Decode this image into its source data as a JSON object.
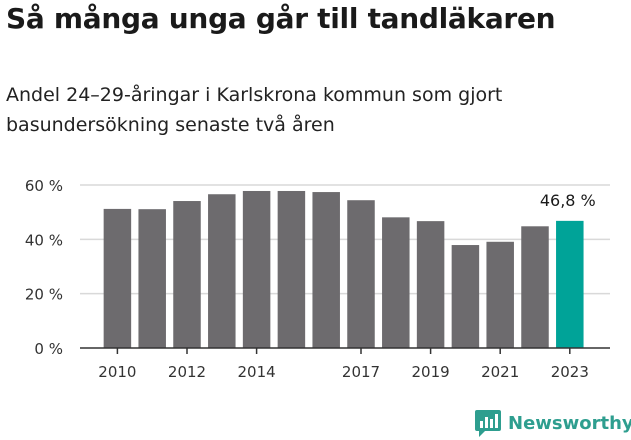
{
  "header": {
    "title": "Så många unga går till tandläkaren",
    "subtitle": "Andel 24–29-åringar i Karlskrona kommun som gjort basundersökning senaste två åren"
  },
  "brand": {
    "name": "Newsworthy",
    "icon": "newsworthy-logo-icon"
  },
  "colors": {
    "bar": "#6d6b6e",
    "highlight": "#00a398",
    "grid": "#d9d9d9",
    "axis": "#333333"
  },
  "chart_data": {
    "type": "bar",
    "categories": [
      "2010",
      "2011",
      "2012",
      "2013",
      "2014",
      "2015",
      "2016",
      "2017",
      "2018",
      "2019",
      "2020",
      "2021",
      "2022",
      "2023"
    ],
    "values": [
      51.2,
      51.1,
      54.1,
      56.6,
      57.8,
      57.8,
      57.4,
      54.4,
      48.1,
      46.7,
      37.9,
      39.1,
      44.8,
      46.8
    ],
    "highlight_index": 13,
    "highlight_label": "46,8 %",
    "xtick_labels": [
      "2010",
      "2012",
      "2014",
      "2017",
      "2019",
      "2021",
      "2023"
    ],
    "ytick_labels": [
      "0 %",
      "20 %",
      "40 %",
      "60 %"
    ],
    "yticks": [
      0,
      20,
      40,
      60
    ],
    "ylim": [
      0,
      60
    ],
    "grid": true
  }
}
